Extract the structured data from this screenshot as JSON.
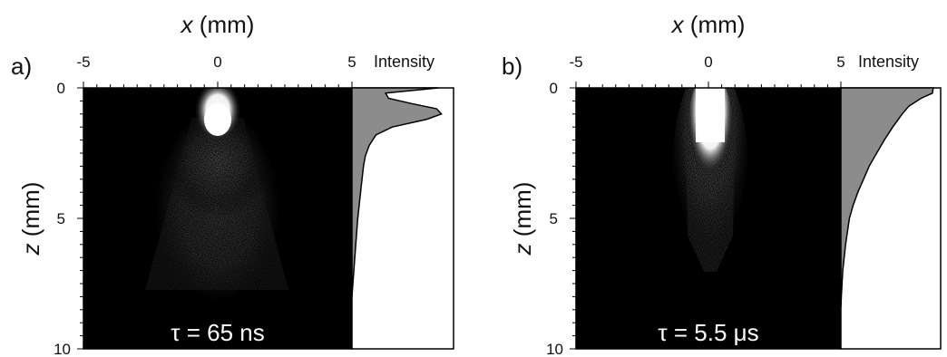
{
  "chart_data": [
    {
      "type": "heatmap",
      "panel_label": "a)",
      "xlabel_var": "x",
      "xlabel_unit": "(mm)",
      "ylabel_var": "z",
      "ylabel_unit": "(mm)",
      "x_ticks": [
        "-5",
        "0",
        "5"
      ],
      "y_ticks": [
        "0",
        "5",
        "10"
      ],
      "xlim": [
        -5,
        5
      ],
      "ylim": [
        0,
        10
      ],
      "side_label": "Intensity",
      "annotation": "τ = 65 ns",
      "profile": {
        "z": [
          0,
          0.2,
          0.4,
          0.6,
          0.8,
          1.0,
          1.2,
          1.5,
          1.8,
          2.2,
          2.6,
          3.0,
          4.0,
          5.0,
          6.0,
          7.0,
          8.0
        ],
        "intensity": [
          0.9,
          0.35,
          0.38,
          0.62,
          0.88,
          0.93,
          0.78,
          0.42,
          0.25,
          0.18,
          0.14,
          0.12,
          0.09,
          0.06,
          0.04,
          0.02,
          0.0
        ]
      },
      "colors": {
        "background": "#000000",
        "profile_fill": "#8c8c8c"
      }
    },
    {
      "type": "heatmap",
      "panel_label": "b)",
      "xlabel_var": "x",
      "xlabel_unit": "(mm)",
      "ylabel_var": "z",
      "ylabel_unit": "(mm)",
      "x_ticks": [
        "-5",
        "0",
        "5"
      ],
      "y_ticks": [
        "0",
        "5",
        "10"
      ],
      "xlim": [
        -5,
        5
      ],
      "ylim": [
        0,
        10
      ],
      "side_label": "Intensity",
      "annotation": "τ = 5.5 μs",
      "profile": {
        "z": [
          0,
          0.2,
          0.4,
          0.7,
          1.0,
          1.5,
          2.0,
          2.5,
          3.0,
          3.5,
          4.0,
          4.5,
          5.0,
          6.0,
          7.0,
          8.0,
          8.4
        ],
        "intensity": [
          0.98,
          0.97,
          0.85,
          0.72,
          0.65,
          0.55,
          0.46,
          0.38,
          0.3,
          0.24,
          0.18,
          0.13,
          0.09,
          0.05,
          0.02,
          0.005,
          0.0
        ]
      },
      "colors": {
        "background": "#000000",
        "profile_fill": "#8c8c8c"
      }
    }
  ]
}
